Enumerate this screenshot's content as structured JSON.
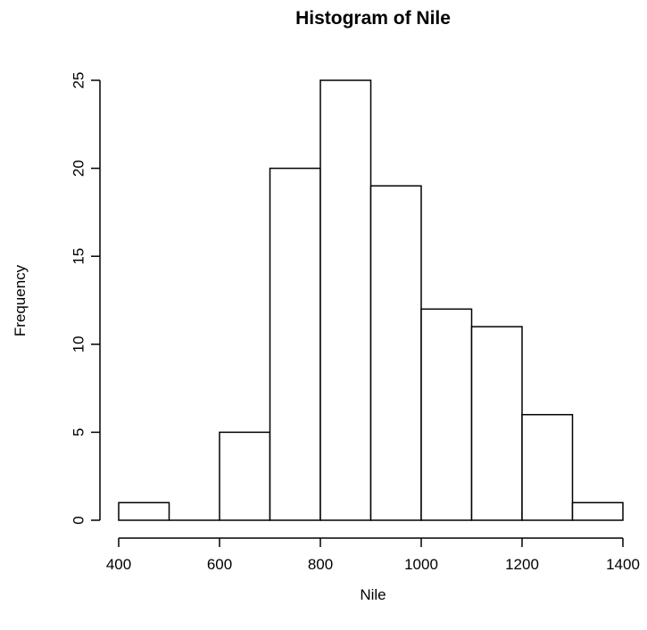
{
  "chart_data": {
    "type": "bar",
    "title": "Histogram of Nile",
    "xlabel": "Nile",
    "ylabel": "Frequency",
    "bins": [
      {
        "start": 400,
        "end": 500,
        "count": 1
      },
      {
        "start": 500,
        "end": 600,
        "count": 0
      },
      {
        "start": 600,
        "end": 700,
        "count": 5
      },
      {
        "start": 700,
        "end": 800,
        "count": 20
      },
      {
        "start": 800,
        "end": 900,
        "count": 25
      },
      {
        "start": 900,
        "end": 1000,
        "count": 19
      },
      {
        "start": 1000,
        "end": 1100,
        "count": 12
      },
      {
        "start": 1100,
        "end": 1200,
        "count": 11
      },
      {
        "start": 1200,
        "end": 1300,
        "count": 6
      },
      {
        "start": 1300,
        "end": 1400,
        "count": 1
      }
    ],
    "xlim": [
      400,
      1400
    ],
    "ylim": [
      0,
      25
    ],
    "x_ticks": [
      "400",
      "600",
      "800",
      "1000",
      "1200",
      "1400"
    ],
    "y_ticks": [
      "0",
      "5",
      "10",
      "15",
      "20",
      "25"
    ],
    "bar_fill": "#ffffff",
    "bar_stroke": "#000000",
    "grid": false
  }
}
